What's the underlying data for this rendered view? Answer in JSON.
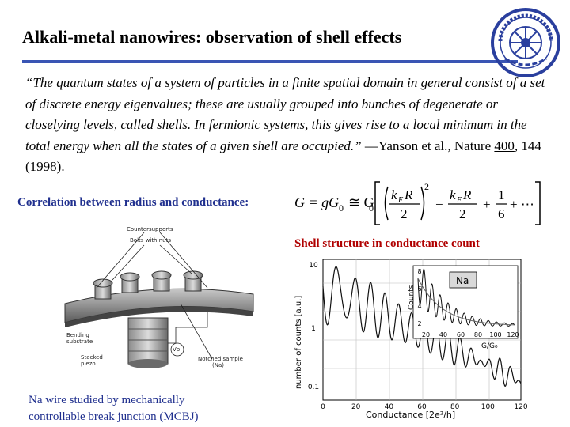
{
  "slide": {
    "title": "Alkali-metal nanowires: observation of shell effects",
    "quote_text": "“The quantum states of a system of particles in a finite spatial domain in general consist of a set of discrete energy eigenvalues; these are usually grouped into bunches of degenerate or closelying levels, called shells. In fermionic systems, this gives rise to a local minimum in the total energy when all the states of a given shell are occupied.”",
    "citation_pre": " —Yanson et al., Nature ",
    "citation_volume": "400",
    "citation_post": ", 144 (1998).",
    "correlation_label": "Correlation between radius and conductance:",
    "shell_label": "Shell structure in conductance count",
    "caption": "Na wire studied by mechanically controllable break junction (MCBJ)",
    "colors": {
      "title_rule": "#3a55b4",
      "blue_text": "#1f2f8e",
      "red_text": "#b00000"
    }
  },
  "formula": {
    "lhs": "G = gG",
    "sub0": "0",
    "approx": "≅ G",
    "kfr": "k",
    "kf_sub": "F",
    "r": "R",
    "two": "2",
    "exp2": "2",
    "minus": "−",
    "one": "1",
    "six": "6",
    "plus_dots": "+ ⋯",
    "plus": "+"
  },
  "device": {
    "labels": {
      "counter_supports": "Countersupports",
      "bolts": "Bolts with nuts",
      "bending": "Bending",
      "substrate": "substrate",
      "stacked": "Stacked",
      "piezo": "piezo",
      "vp": "Vp",
      "notched": "Notched sample",
      "na": "(Na)"
    }
  },
  "plot": {
    "icons": [
      "histogram"
    ],
    "xlabel": "Conductance [2e²/h]",
    "ylabel": "number of counts [a.u.]",
    "x_ticks": [
      "0",
      "20",
      "40",
      "60",
      "80",
      "100",
      "120"
    ],
    "y_ticks": [
      "10",
      "1",
      "0.1"
    ],
    "inset": {
      "label": "Na",
      "ylabel": "Counts",
      "xlabel": "G/G₀",
      "x_ticks": [
        "20",
        "40",
        "60",
        "80",
        "100",
        "120"
      ],
      "y_ticks": [
        "8",
        "6",
        "4",
        "2"
      ]
    }
  }
}
